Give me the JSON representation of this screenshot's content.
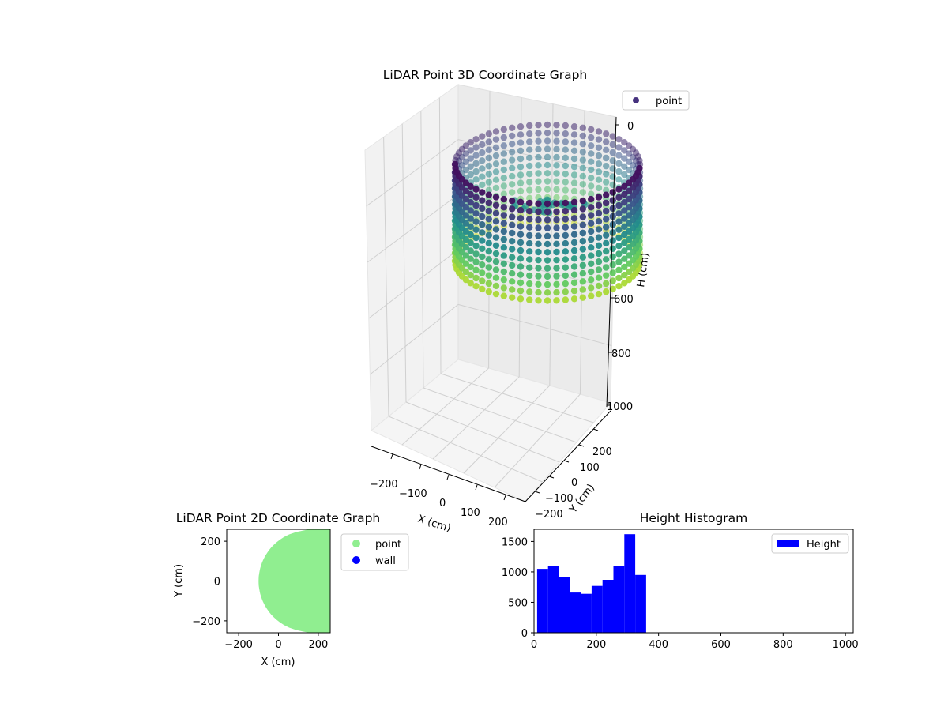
{
  "chart_data": [
    {
      "type": "scatter3d",
      "title": "LiDAR Point 3D Coordinate Graph",
      "xlabel": "X (cm)",
      "ylabel": "Y (cm)",
      "zlabel": "H (cm)",
      "xticks": [
        -200,
        -100,
        0,
        100,
        200
      ],
      "yticks": [
        -200,
        -100,
        0,
        100,
        200
      ],
      "zticks": [
        0,
        600,
        800,
        1000
      ],
      "xlim": [
        -260,
        260
      ],
      "ylim": [
        -260,
        260
      ],
      "zlim": [
        0,
        1000
      ],
      "z_inverted": true,
      "colormap": "viridis",
      "legend": {
        "entries": [
          {
            "name": "point",
            "color": "#46327e"
          }
        ],
        "placement": "upper-right"
      },
      "cylinder": {
        "radius_cm": 255,
        "h_min_cm": 0,
        "h_max_cm": 350
      }
    },
    {
      "type": "scatter",
      "title": "LiDAR Point 2D Coordinate Graph",
      "xlabel": "X (cm)",
      "ylabel": "Y (cm)",
      "xlim": [
        -260,
        260
      ],
      "ylim": [
        -260,
        260
      ],
      "xticks": [
        -200,
        0,
        200
      ],
      "yticks": [
        -200,
        0,
        200
      ],
      "legend": {
        "entries": [
          {
            "name": "point",
            "color": "#90ee90"
          },
          {
            "name": "wall",
            "color": "#0000ff"
          }
        ],
        "placement": "outside-right"
      },
      "region": {
        "left_edge_x_at_y0": -100,
        "right_edge_x": 260,
        "y_range": [
          -260,
          260
        ],
        "color": "#90ee90"
      }
    },
    {
      "type": "bar",
      "title": "Height Histogram",
      "xlim": [
        0,
        1025
      ],
      "ylim": [
        0,
        1700
      ],
      "xticks": [
        0,
        200,
        400,
        600,
        800,
        1000
      ],
      "yticks": [
        0,
        500,
        1000,
        1500
      ],
      "legend": {
        "entries": [
          {
            "name": "Height",
            "color": "#0000ff"
          }
        ],
        "placement": "upper-right"
      },
      "bin_width": 35,
      "bins": [
        10,
        45,
        80,
        115,
        150,
        185,
        220,
        255,
        290,
        325
      ],
      "values": [
        1050,
        1090,
        910,
        660,
        640,
        770,
        870,
        1090,
        1620,
        950
      ],
      "color": "#0000ff"
    }
  ]
}
